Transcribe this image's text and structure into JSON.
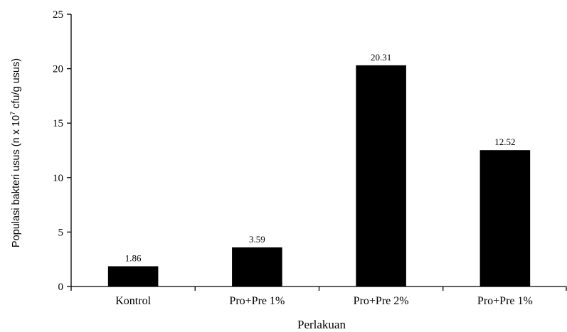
{
  "chart_data": {
    "type": "bar",
    "categories": [
      "Kontrol",
      "Pro+Pre 1%",
      "Pro+Pre 2%",
      "Pro+Pre 1%"
    ],
    "values": [
      1.86,
      3.59,
      20.31,
      12.52
    ],
    "data_labels": [
      "1.86",
      "3.59",
      "20.31",
      "12.52"
    ],
    "title": "",
    "xlabel": "Perlakuan",
    "ylabel": {
      "prefix": "Populasi bakteri usus (n x 10",
      "superscript": "7",
      "suffix": " cfu/g usus)"
    },
    "ylim": [
      0,
      25
    ],
    "yticks": [
      0,
      5,
      10,
      15,
      20,
      25
    ],
    "grid": false,
    "legend": "none",
    "bar_color": "#000000"
  }
}
